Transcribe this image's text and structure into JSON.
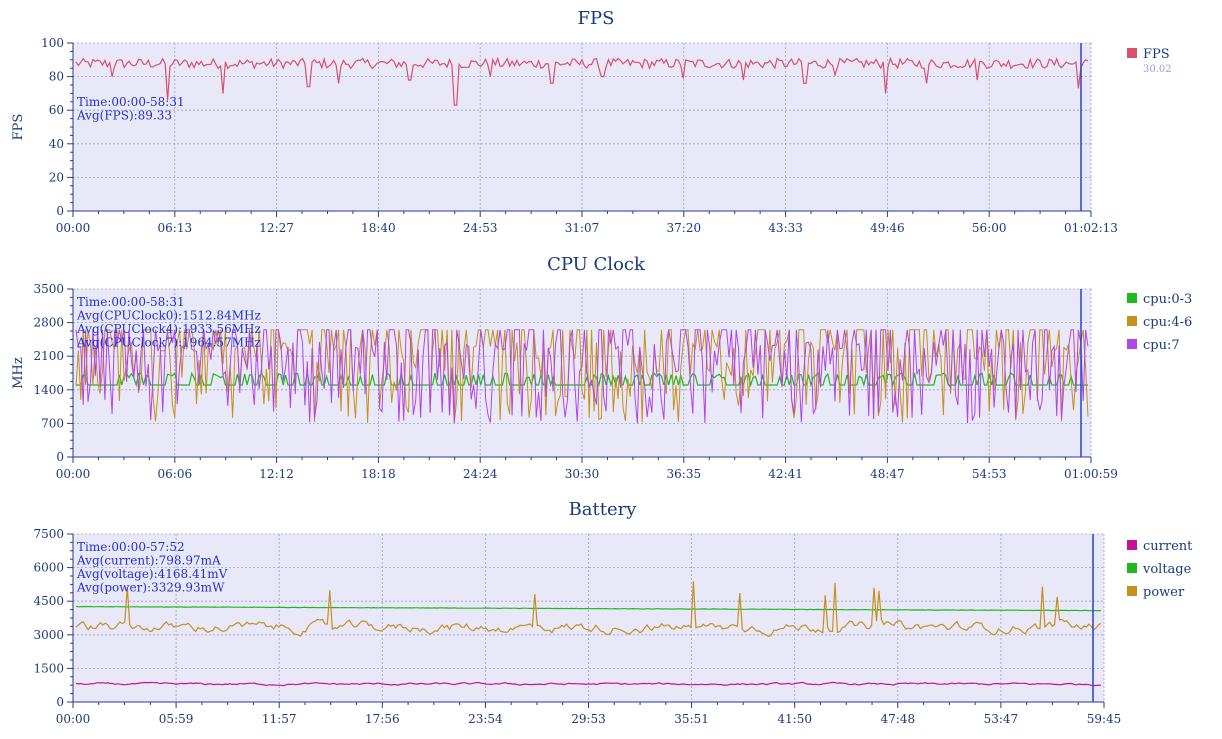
{
  "chart_data": [
    {
      "type": "line",
      "title": "FPS",
      "ylabel": "FPS",
      "xlabel": "",
      "ylim": [
        0,
        100
      ],
      "yticks": [
        "0",
        "20",
        "40",
        "60",
        "80",
        "100"
      ],
      "xticks": [
        "00:00",
        "06:13",
        "12:27",
        "18:40",
        "24:53",
        "31:07",
        "37:20",
        "43:33",
        "49:46",
        "56:00",
        "01:02:13"
      ],
      "annotations": [
        "Time:00:00-58:31",
        "Avg(FPS):89.33"
      ],
      "legend": "right",
      "series": [
        {
          "name": "FPS",
          "sub": "30.02",
          "color": "#d8506e",
          "base": 89,
          "noise": 3,
          "dips": [
            [
              0.035,
              80
            ],
            [
              0.09,
              66
            ],
            [
              0.145,
              70
            ],
            [
              0.23,
              74
            ],
            [
              0.26,
              76
            ],
            [
              0.33,
              78
            ],
            [
              0.375,
              63
            ],
            [
              0.41,
              80
            ],
            [
              0.47,
              76
            ],
            [
              0.52,
              80
            ],
            [
              0.6,
              79
            ],
            [
              0.66,
              78
            ],
            [
              0.72,
              76
            ],
            [
              0.75,
              81
            ],
            [
              0.8,
              70
            ],
            [
              0.84,
              76
            ],
            [
              0.89,
              78
            ],
            [
              0.99,
              73
            ]
          ],
          "end": 0.993
        }
      ]
    },
    {
      "type": "line",
      "title": "CPU Clock",
      "ylabel": "MHz",
      "xlabel": "",
      "ylim": [
        0,
        3500
      ],
      "yticks": [
        "0",
        "700",
        "1400",
        "2100",
        "2800",
        "3500"
      ],
      "xticks": [
        "00:00",
        "06:06",
        "12:12",
        "18:18",
        "24:24",
        "30:30",
        "36:35",
        "42:41",
        "48:47",
        "54:53",
        "01:00:59"
      ],
      "annotations": [
        "Time:00:00-58:31",
        "Avg(CPUClock0):1512.84MHz",
        "Avg(CPUClock4):1933.56MHz",
        "Avg(CPUClock7):1964.57MHz"
      ],
      "legend": "right",
      "series": [
        {
          "name": "cpu:0-3",
          "color": "#1fb81f",
          "base": 1500,
          "noise": 120
        },
        {
          "name": "cpu:4-6",
          "color": "#c49020",
          "base": 1950,
          "noise": 600
        },
        {
          "name": "cpu:7",
          "color": "#b444e6",
          "base": 1950,
          "noise": 800
        }
      ]
    },
    {
      "type": "line",
      "title": "Battery",
      "ylabel": "",
      "xlabel": "",
      "ylim": [
        0,
        7500
      ],
      "yticks": [
        "0",
        "1500",
        "3000",
        "4500",
        "6000",
        "7500"
      ],
      "xticks": [
        "00:00",
        "05:59",
        "11:57",
        "17:56",
        "23:54",
        "29:53",
        "35:51",
        "41:50",
        "47:48",
        "53:47",
        "59:45"
      ],
      "annotations": [
        "Time:00:00-57:52",
        "Avg(current):798.97mA",
        "Avg(voltage):4168.41mV",
        "Avg(power):3329.93mW"
      ],
      "legend": "right",
      "series": [
        {
          "name": "current",
          "color": "#c4129a",
          "base": 800,
          "noise": 150
        },
        {
          "name": "voltage",
          "color": "#1fb81f",
          "base": 4200,
          "noise": 15
        },
        {
          "name": "power",
          "color": "#c49020",
          "base": 3330,
          "noise": 700
        }
      ]
    }
  ]
}
